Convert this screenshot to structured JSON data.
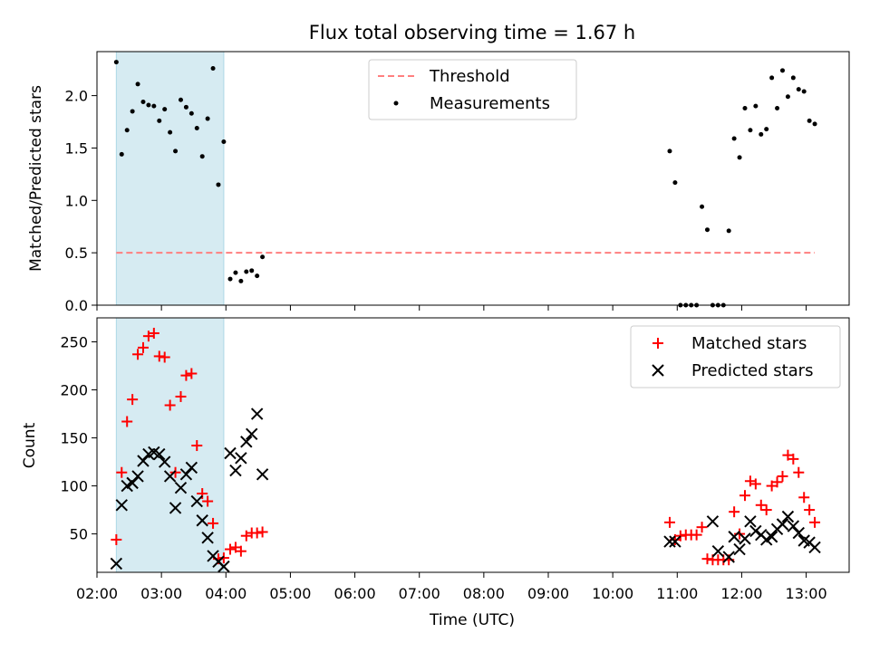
{
  "chart_data": [
    {
      "type": "scatter",
      "title": "Flux total observing time = 1.67 h",
      "xlabel": "",
      "ylabel": "Matched/Predicted stars",
      "ylim": [
        0,
        2.42
      ],
      "yticks": [
        "0.0",
        "0.5",
        "1.0",
        "1.5",
        "2.0"
      ],
      "ytick_values": [
        0,
        0.5,
        1.0,
        1.5,
        2.0
      ],
      "legend": [
        "Threshold",
        "Measurements"
      ],
      "legend_position": "upper center",
      "threshold": {
        "name": "Threshold",
        "value": 0.5,
        "x_start": "02:18",
        "x_end": "13:08",
        "color": "#ff7f7f"
      },
      "shaded_span": {
        "start": "02:18",
        "end": "03:58",
        "color": "#add8e6"
      },
      "series": [
        {
          "name": "Measurements",
          "color": "#000000",
          "points": [
            [
              "02:18",
              2.32
            ],
            [
              "02:23",
              1.44
            ],
            [
              "02:28",
              1.67
            ],
            [
              "02:33",
              1.85
            ],
            [
              "02:38",
              2.11
            ],
            [
              "02:43",
              1.94
            ],
            [
              "02:48",
              1.91
            ],
            [
              "02:53",
              1.9
            ],
            [
              "02:58",
              1.76
            ],
            [
              "03:03",
              1.87
            ],
            [
              "03:08",
              1.65
            ],
            [
              "03:13",
              1.47
            ],
            [
              "03:18",
              1.96
            ],
            [
              "03:23",
              1.89
            ],
            [
              "03:28",
              1.83
            ],
            [
              "03:33",
              1.69
            ],
            [
              "03:38",
              1.42
            ],
            [
              "03:43",
              1.78
            ],
            [
              "03:48",
              2.26
            ],
            [
              "03:53",
              1.15
            ],
            [
              "03:58",
              1.56
            ],
            [
              "04:04",
              0.25
            ],
            [
              "04:09",
              0.31
            ],
            [
              "04:14",
              0.23
            ],
            [
              "04:19",
              0.32
            ],
            [
              "04:24",
              0.33
            ],
            [
              "04:29",
              0.28
            ],
            [
              "04:34",
              0.46
            ],
            [
              "10:53",
              1.47
            ],
            [
              "10:58",
              1.17
            ],
            [
              "11:03",
              0.0
            ],
            [
              "11:08",
              0.0
            ],
            [
              "11:13",
              0.0
            ],
            [
              "11:18",
              0.0
            ],
            [
              "11:23",
              0.94
            ],
            [
              "11:28",
              0.72
            ],
            [
              "11:33",
              0.0
            ],
            [
              "11:38",
              0.0
            ],
            [
              "11:43",
              0.0
            ],
            [
              "11:48",
              0.71
            ],
            [
              "11:53",
              1.59
            ],
            [
              "11:58",
              1.41
            ],
            [
              "12:03",
              1.88
            ],
            [
              "12:08",
              1.67
            ],
            [
              "12:13",
              1.9
            ],
            [
              "12:18",
              1.63
            ],
            [
              "12:23",
              1.68
            ],
            [
              "12:28",
              2.17
            ],
            [
              "12:33",
              1.88
            ],
            [
              "12:38",
              2.24
            ],
            [
              "12:43",
              1.99
            ],
            [
              "12:48",
              2.17
            ],
            [
              "12:53",
              2.06
            ],
            [
              "12:58",
              2.04
            ],
            [
              "13:03",
              1.76
            ],
            [
              "13:08",
              1.73
            ]
          ]
        }
      ]
    },
    {
      "type": "scatter",
      "title": "",
      "xlabel": "Time (UTC)",
      "ylabel": "Count",
      "ylim": [
        10,
        275
      ],
      "yticks": [
        "50",
        "100",
        "150",
        "200",
        "250"
      ],
      "ytick_values": [
        50,
        100,
        150,
        200,
        250
      ],
      "xlim": [
        "02:00",
        "13:40"
      ],
      "xticks": [
        "02:00",
        "03:00",
        "04:00",
        "05:00",
        "06:00",
        "07:00",
        "08:00",
        "09:00",
        "10:00",
        "11:00",
        "12:00",
        "13:00"
      ],
      "legend": [
        "Matched stars",
        "Predicted stars"
      ],
      "legend_position": "upper right",
      "shaded_span": {
        "start": "02:18",
        "end": "03:58",
        "color": "#add8e6"
      },
      "series": [
        {
          "name": "Matched stars",
          "marker": "+",
          "color": "#ff0000",
          "points": [
            [
              "02:18",
              44
            ],
            [
              "02:23",
              114
            ],
            [
              "02:28",
              167
            ],
            [
              "02:33",
              190
            ],
            [
              "02:38",
              237
            ],
            [
              "02:43",
              244
            ],
            [
              "02:48",
              256
            ],
            [
              "02:53",
              259
            ],
            [
              "02:58",
              235
            ],
            [
              "03:03",
              234
            ],
            [
              "03:08",
              184
            ],
            [
              "03:13",
              114
            ],
            [
              "03:18",
              193
            ],
            [
              "03:23",
              215
            ],
            [
              "03:28",
              217
            ],
            [
              "03:33",
              142
            ],
            [
              "03:38",
              92
            ],
            [
              "03:43",
              84
            ],
            [
              "03:48",
              61
            ],
            [
              "03:53",
              24
            ],
            [
              "03:58",
              25
            ],
            [
              "04:04",
              34
            ],
            [
              "04:09",
              36
            ],
            [
              "04:14",
              32
            ],
            [
              "04:19",
              48
            ],
            [
              "04:24",
              51
            ],
            [
              "04:29",
              51
            ],
            [
              "04:34",
              52
            ],
            [
              "10:53",
              62
            ],
            [
              "10:58",
              44
            ],
            [
              "11:03",
              48
            ],
            [
              "11:08",
              49
            ],
            [
              "11:13",
              49
            ],
            [
              "11:18",
              49
            ],
            [
              "11:23",
              57
            ],
            [
              "11:28",
              24
            ],
            [
              "11:33",
              23
            ],
            [
              "11:38",
              23
            ],
            [
              "11:43",
              23
            ],
            [
              "11:48",
              23
            ],
            [
              "11:53",
              73
            ],
            [
              "11:58",
              50
            ],
            [
              "12:03",
              90
            ],
            [
              "12:08",
              105
            ],
            [
              "12:13",
              102
            ],
            [
              "12:18",
              80
            ],
            [
              "12:23",
              75
            ],
            [
              "12:28",
              100
            ],
            [
              "12:33",
              104
            ],
            [
              "12:38",
              110
            ],
            [
              "12:43",
              132
            ],
            [
              "12:48",
              128
            ],
            [
              "12:53",
              114
            ],
            [
              "12:58",
              88
            ],
            [
              "13:03",
              75
            ],
            [
              "13:08",
              62
            ]
          ]
        },
        {
          "name": "Predicted stars",
          "marker": "x",
          "color": "#000000",
          "points": [
            [
              "02:18",
              19
            ],
            [
              "02:23",
              80
            ],
            [
              "02:28",
              100
            ],
            [
              "02:33",
              103
            ],
            [
              "02:38",
              110
            ],
            [
              "02:43",
              126
            ],
            [
              "02:48",
              133
            ],
            [
              "02:53",
              135
            ],
            [
              "02:58",
              133
            ],
            [
              "03:03",
              125
            ],
            [
              "03:08",
              110
            ],
            [
              "03:13",
              77
            ],
            [
              "03:18",
              98
            ],
            [
              "03:23",
              112
            ],
            [
              "03:28",
              119
            ],
            [
              "03:33",
              84
            ],
            [
              "03:38",
              64
            ],
            [
              "03:43",
              46
            ],
            [
              "03:48",
              27
            ],
            [
              "03:53",
              21
            ],
            [
              "03:58",
              16
            ],
            [
              "04:04",
              134
            ],
            [
              "04:09",
              116
            ],
            [
              "04:14",
              129
            ],
            [
              "04:19",
              146
            ],
            [
              "04:24",
              154
            ],
            [
              "04:29",
              175
            ],
            [
              "04:34",
              112
            ],
            [
              "10:53",
              42
            ],
            [
              "10:58",
              42
            ],
            [
              "11:33",
              63
            ],
            [
              "11:38",
              32
            ],
            [
              "11:48",
              26
            ],
            [
              "11:53",
              47
            ],
            [
              "11:58",
              34
            ],
            [
              "12:03",
              45
            ],
            [
              "12:08",
              63
            ],
            [
              "12:13",
              53
            ],
            [
              "12:18",
              49
            ],
            [
              "12:23",
              44
            ],
            [
              "12:28",
              47
            ],
            [
              "12:33",
              55
            ],
            [
              "12:38",
              60
            ],
            [
              "12:43",
              68
            ],
            [
              "12:48",
              58
            ],
            [
              "12:53",
              51
            ],
            [
              "12:58",
              43
            ],
            [
              "13:03",
              41
            ],
            [
              "13:08",
              36
            ]
          ]
        }
      ]
    }
  ]
}
